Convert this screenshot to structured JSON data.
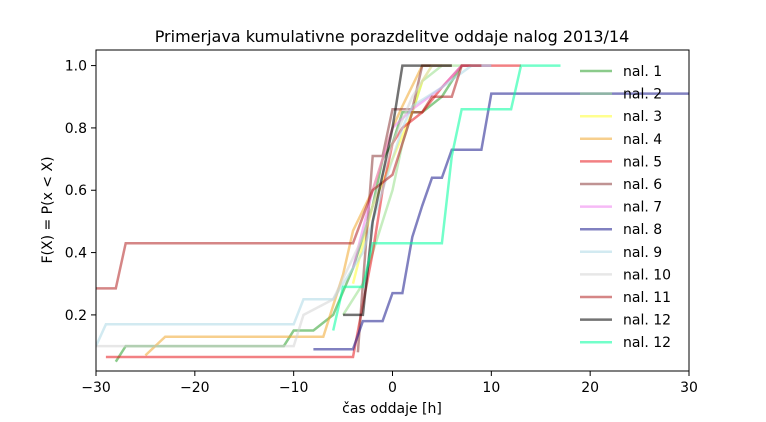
{
  "chart_data": {
    "type": "line",
    "title": "Primerjava kumulativne porazdelitve oddaje nalog 2013/14",
    "xlabel": "čas oddaje [h]",
    "ylabel": "F(X) = P(x < X)",
    "xlim": [
      -30,
      30
    ],
    "ylim": [
      0.02,
      1.05
    ],
    "xticks": [
      -30,
      -20,
      -10,
      0,
      10,
      20,
      30
    ],
    "yticks": [
      0.2,
      0.4,
      0.6,
      0.8,
      1.0
    ],
    "xtick_labels": [
      "−30",
      "−20",
      "−10",
      "0",
      "10",
      "20",
      "30"
    ],
    "ytick_labels": [
      "0.2",
      "0.4",
      "0.6",
      "0.8",
      "1.0"
    ],
    "grid": false,
    "legend_position": "right",
    "series": [
      {
        "name": "nal. 1",
        "color": "#2ca02c",
        "points": [
          [
            -28,
            0.05
          ],
          [
            -27,
            0.1
          ],
          [
            -11,
            0.1
          ],
          [
            -10,
            0.15
          ],
          [
            -8,
            0.15
          ],
          [
            -6,
            0.2
          ],
          [
            -4,
            0.35
          ],
          [
            -2,
            0.55
          ],
          [
            -1,
            0.7
          ],
          [
            0,
            0.75
          ],
          [
            1,
            0.85
          ],
          [
            3,
            0.85
          ],
          [
            5,
            0.9
          ],
          [
            6,
            0.95
          ],
          [
            7,
            1.0
          ],
          [
            10,
            1.0
          ]
        ]
      },
      {
        "name": "nal. 2",
        "color": "#98df8a",
        "points": [
          [
            -5,
            0.2
          ],
          [
            -3,
            0.3
          ],
          [
            -1,
            0.5
          ],
          [
            0,
            0.6
          ],
          [
            1,
            0.75
          ],
          [
            3,
            0.95
          ],
          [
            5,
            1.0
          ],
          [
            8,
            1.0
          ]
        ]
      },
      {
        "name": "nal. 3",
        "color": "#ffff33",
        "points": [
          [
            -4,
            0.3
          ],
          [
            -2,
            0.55
          ],
          [
            0,
            0.7
          ],
          [
            2,
            0.85
          ],
          [
            3,
            0.95
          ],
          [
            4,
            1.0
          ],
          [
            6,
            1.0
          ]
        ]
      },
      {
        "name": "nal. 4",
        "color": "#f0a830",
        "points": [
          [
            -25,
            0.07
          ],
          [
            -23,
            0.13
          ],
          [
            -7,
            0.13
          ],
          [
            -5,
            0.33
          ],
          [
            -4,
            0.47
          ],
          [
            -2,
            0.6
          ],
          [
            0,
            0.8
          ],
          [
            1,
            0.87
          ],
          [
            3,
            1.0
          ],
          [
            5,
            1.0
          ]
        ]
      },
      {
        "name": "nal. 5",
        "color": "#e8171d",
        "points": [
          [
            -29,
            0.065
          ],
          [
            -4,
            0.065
          ],
          [
            -2,
            0.4
          ],
          [
            -1,
            0.6
          ],
          [
            0,
            0.75
          ],
          [
            1,
            0.8
          ],
          [
            3,
            0.85
          ],
          [
            5,
            0.93
          ],
          [
            7,
            1.0
          ],
          [
            13,
            1.0
          ]
        ]
      },
      {
        "name": "nal. 6",
        "color": "#8c3a3a",
        "points": [
          [
            -3.5,
            0.08
          ],
          [
            -3,
            0.3
          ],
          [
            -2,
            0.71
          ],
          [
            -1,
            0.71
          ],
          [
            0,
            0.86
          ],
          [
            2,
            0.86
          ],
          [
            3,
            1.0
          ],
          [
            6,
            1.0
          ]
        ]
      },
      {
        "name": "nal. 7",
        "color": "#ee82ee",
        "points": [
          [
            -4,
            0.35
          ],
          [
            -2,
            0.6
          ],
          [
            0,
            0.8
          ],
          [
            2,
            0.86
          ],
          [
            5,
            0.93
          ],
          [
            7,
            1.0
          ],
          [
            10,
            1.0
          ]
        ]
      },
      {
        "name": "nal. 8",
        "color": "#1a1a8c",
        "points": [
          [
            -8,
            0.09
          ],
          [
            -4,
            0.09
          ],
          [
            -3,
            0.18
          ],
          [
            -1,
            0.18
          ],
          [
            0,
            0.27
          ],
          [
            1,
            0.27
          ],
          [
            2,
            0.45
          ],
          [
            3,
            0.55
          ],
          [
            4,
            0.64
          ],
          [
            5,
            0.64
          ],
          [
            6,
            0.73
          ],
          [
            9,
            0.73
          ],
          [
            10,
            0.91
          ],
          [
            30,
            0.91
          ]
        ]
      },
      {
        "name": "nal. 9",
        "color": "#add8e6",
        "points": [
          [
            -30,
            0.1
          ],
          [
            -29,
            0.17
          ],
          [
            -10,
            0.17
          ],
          [
            -9,
            0.25
          ],
          [
            -6,
            0.25
          ],
          [
            -3,
            0.4
          ],
          [
            -1,
            0.6
          ],
          [
            0,
            0.7
          ],
          [
            1,
            0.8
          ],
          [
            2,
            0.87
          ],
          [
            5,
            0.93
          ],
          [
            8,
            1.0
          ],
          [
            10,
            1.0
          ]
        ]
      },
      {
        "name": "nal. 10",
        "color": "#d3d3d3",
        "points": [
          [
            -30,
            0.1
          ],
          [
            -10,
            0.1
          ],
          [
            -9,
            0.2
          ],
          [
            -6,
            0.25
          ],
          [
            -3,
            0.45
          ],
          [
            0,
            0.75
          ],
          [
            2,
            0.9
          ],
          [
            4,
            1.0
          ],
          [
            6,
            1.0
          ]
        ]
      },
      {
        "name": "nal. 11",
        "color": "#b22222",
        "points": [
          [
            -30,
            0.285
          ],
          [
            -28,
            0.285
          ],
          [
            -27,
            0.43
          ],
          [
            -4,
            0.43
          ],
          [
            -2,
            0.6
          ],
          [
            0,
            0.65
          ],
          [
            1,
            0.75
          ],
          [
            2,
            0.85
          ],
          [
            3,
            0.85
          ],
          [
            4,
            0.9
          ],
          [
            6,
            0.9
          ],
          [
            7,
            1.0
          ],
          [
            9,
            1.0
          ]
        ]
      },
      {
        "name": "nal. 12",
        "color": "#000000",
        "points": [
          [
            -5,
            0.2
          ],
          [
            -3,
            0.2
          ],
          [
            -2,
            0.5
          ],
          [
            -1,
            0.65
          ],
          [
            0,
            0.8
          ],
          [
            1,
            1.0
          ],
          [
            6,
            1.0
          ]
        ]
      },
      {
        "name": "nal. 12",
        "color": "#00ff9f",
        "points": [
          [
            -6,
            0.15
          ],
          [
            -5,
            0.29
          ],
          [
            -3,
            0.29
          ],
          [
            -2,
            0.43
          ],
          [
            2,
            0.43
          ],
          [
            5,
            0.43
          ],
          [
            6,
            0.71
          ],
          [
            7,
            0.86
          ],
          [
            12,
            0.86
          ],
          [
            13,
            1.0
          ],
          [
            17,
            1.0
          ]
        ]
      }
    ]
  }
}
